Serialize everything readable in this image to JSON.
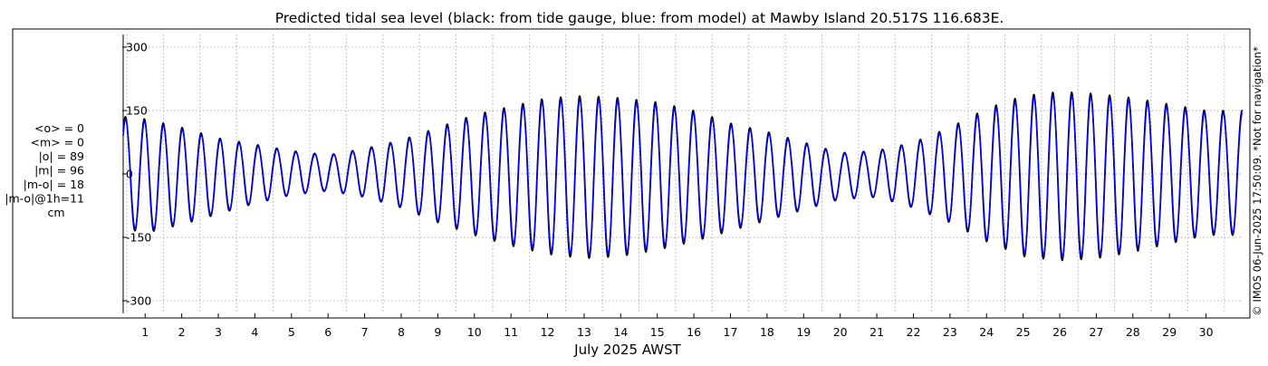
{
  "title": "Predicted tidal sea level (black: from tide gauge, blue: from model) at Mawby Island 20.517S 116.683E.",
  "xlabel": "July 2025 AWST",
  "side_note": "© IMOS 06-Jun-2025 17:50:09. *Not for navigation*",
  "stats": [
    "<o> = 0",
    "<m> = 0",
    "|o| = 89",
    "|m| = 96",
    "|m-o| = 18",
    "|m-o|@1h=11",
    "cm"
  ],
  "colors": {
    "observed": "#000000",
    "model": "#0000ff",
    "grid": "#b0b0b0"
  },
  "chart_data": {
    "type": "line",
    "title": "Predicted tidal sea level (black: from tide gauge, blue: from model) at Mawby Island 20.517S 116.683E.",
    "xlabel": "July 2025 AWST",
    "ylabel": "",
    "xlim": [
      0.4,
      31.0
    ],
    "ylim": [
      -330,
      330
    ],
    "yticks": [
      300,
      150,
      0,
      -150,
      -300
    ],
    "ytick_labels": [
      "300",
      "150",
      "0",
      "-150",
      "-300"
    ],
    "xticks": [
      1,
      2,
      3,
      4,
      5,
      6,
      7,
      8,
      9,
      10,
      11,
      12,
      13,
      14,
      15,
      16,
      17,
      18,
      19,
      20,
      21,
      22,
      23,
      24,
      25,
      26,
      27,
      28,
      29,
      30
    ],
    "xtick_labels": [
      "1",
      "2",
      "3",
      "4",
      "5",
      "6",
      "7",
      "8",
      "9",
      "10",
      "11",
      "12",
      "13",
      "14",
      "15",
      "16",
      "17",
      "18",
      "19",
      "20",
      "21",
      "22",
      "23",
      "24",
      "25",
      "26",
      "27",
      "28",
      "29",
      "30"
    ],
    "grid": true,
    "day_envelope": {
      "x": [
        0,
        1,
        2,
        3,
        4,
        5,
        6,
        7,
        8,
        9,
        10,
        11,
        12,
        13,
        14,
        15,
        16,
        17,
        18,
        19,
        20,
        21,
        22,
        23,
        24,
        25,
        26,
        27,
        28,
        29,
        30
      ],
      "high": [
        140,
        130,
        110,
        85,
        70,
        55,
        45,
        60,
        80,
        110,
        140,
        160,
        180,
        185,
        180,
        170,
        150,
        120,
        100,
        75,
        50,
        55,
        75,
        110,
        155,
        185,
        195,
        190,
        180,
        165,
        150
      ],
      "low": [
        -120,
        -140,
        -120,
        -95,
        -70,
        -50,
        -40,
        -55,
        -80,
        -115,
        -145,
        -170,
        -190,
        -200,
        -195,
        -180,
        -160,
        -135,
        -110,
        -85,
        -60,
        -55,
        -80,
        -115,
        -160,
        -195,
        -205,
        -200,
        -185,
        -165,
        -145
      ]
    },
    "series": [
      {
        "name": "tide gauge",
        "color": "#000000"
      },
      {
        "name": "model",
        "color": "#0000ff"
      }
    ]
  }
}
